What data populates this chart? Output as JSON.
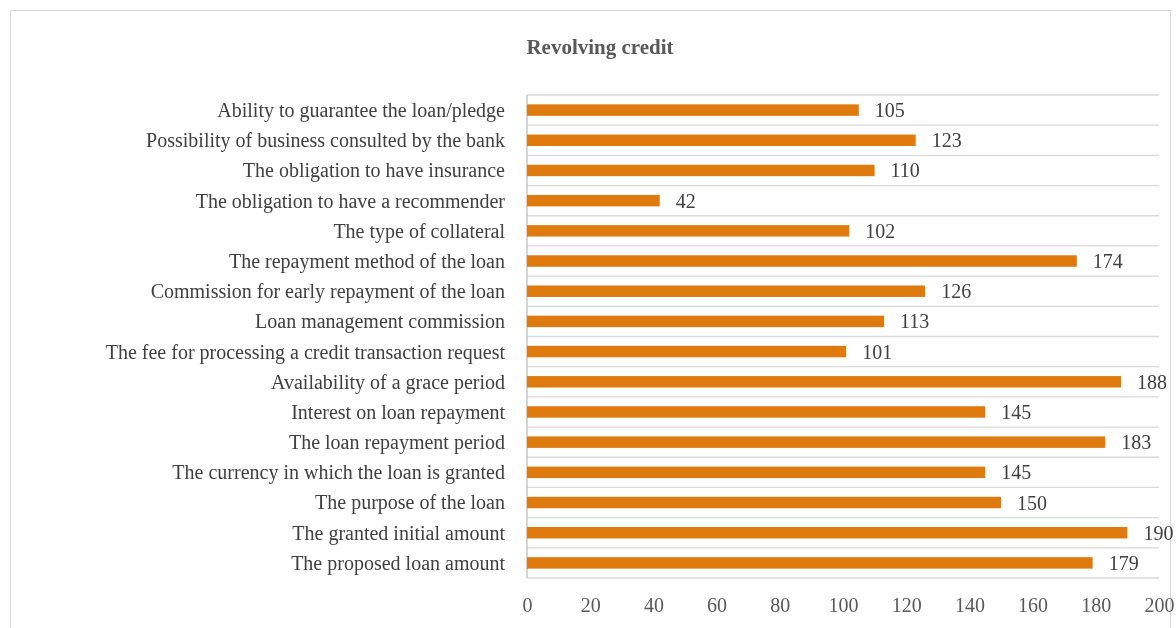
{
  "chart_data": {
    "type": "bar",
    "title": "Revolving credit",
    "orientation": "horizontal",
    "categories": [
      "Ability to guarantee the loan/pledge",
      "Possibility of business consulted by the bank",
      "The obligation to have insurance",
      "The obligation to have a recommender",
      "The type of collateral ",
      "The repayment method of the loan ",
      "Commission for early repayment of the loan",
      "Loan management commission",
      "The fee for processing a credit transaction request",
      "Availability of a grace period",
      "Interest on loan repayment",
      "The loan repayment period",
      "The currency in which the loan is granted",
      "The purpose of the loan",
      "The granted initial amount",
      "The proposed loan amount"
    ],
    "values": [
      105,
      123,
      110,
      42,
      102,
      174,
      126,
      113,
      101,
      188,
      145,
      183,
      145,
      150,
      190,
      179
    ],
    "color": "#df7b0e",
    "xlim": [
      0,
      200
    ],
    "xticks": [
      0,
      20,
      40,
      60,
      80,
      100,
      120,
      140,
      160,
      180,
      200
    ],
    "grid": "y",
    "data_labels": true
  }
}
